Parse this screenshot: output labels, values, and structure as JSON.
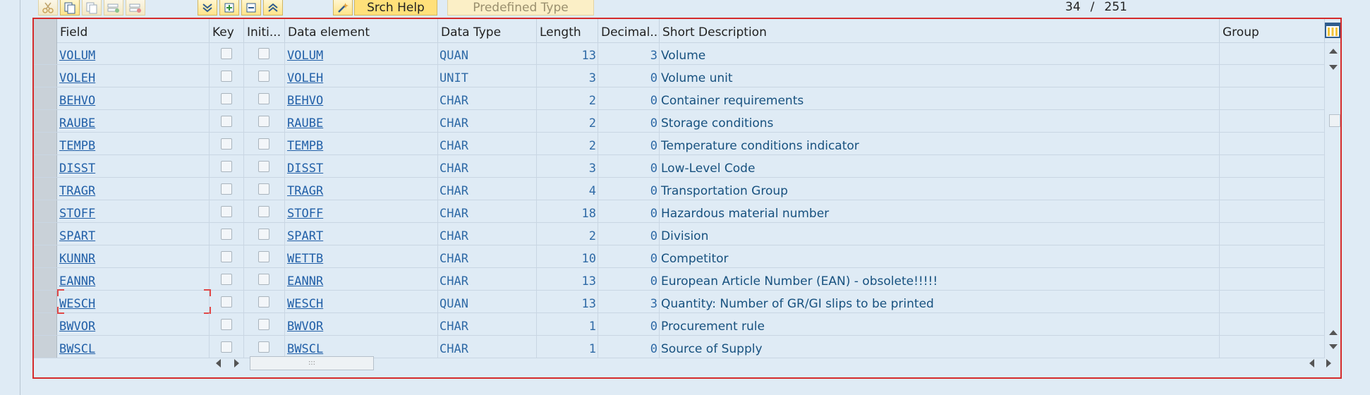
{
  "toolbar": {
    "srch_help_label": "Srch Help",
    "predefined_type_label": "Predefined Type",
    "counter_current": "34",
    "counter_sep": "/",
    "counter_total": "251"
  },
  "columns": [
    "Field",
    "Key",
    "Initi...",
    "Data element",
    "Data Type",
    "Length",
    "Decimal...",
    "Short Description",
    "Group"
  ],
  "rows": [
    {
      "field": "VOLUM",
      "element": "VOLUM",
      "type": "QUAN",
      "length": "13",
      "decimals": "3",
      "desc": "Volume"
    },
    {
      "field": "VOLEH",
      "element": "VOLEH",
      "type": "UNIT",
      "length": "3",
      "decimals": "0",
      "desc": "Volume unit"
    },
    {
      "field": "BEHVO",
      "element": "BEHVO",
      "type": "CHAR",
      "length": "2",
      "decimals": "0",
      "desc": "Container requirements"
    },
    {
      "field": "RAUBE",
      "element": "RAUBE",
      "type": "CHAR",
      "length": "2",
      "decimals": "0",
      "desc": "Storage conditions"
    },
    {
      "field": "TEMPB",
      "element": "TEMPB",
      "type": "CHAR",
      "length": "2",
      "decimals": "0",
      "desc": "Temperature conditions indicator"
    },
    {
      "field": "DISST",
      "element": "DISST",
      "type": "CHAR",
      "length": "3",
      "decimals": "0",
      "desc": "Low-Level Code"
    },
    {
      "field": "TRAGR",
      "element": "TRAGR",
      "type": "CHAR",
      "length": "4",
      "decimals": "0",
      "desc": "Transportation Group"
    },
    {
      "field": "STOFF",
      "element": "STOFF",
      "type": "CHAR",
      "length": "18",
      "decimals": "0",
      "desc": "Hazardous material number"
    },
    {
      "field": "SPART",
      "element": "SPART",
      "type": "CHAR",
      "length": "2",
      "decimals": "0",
      "desc": "Division"
    },
    {
      "field": "KUNNR",
      "element": "WETTB",
      "type": "CHAR",
      "length": "10",
      "decimals": "0",
      "desc": "Competitor"
    },
    {
      "field": "EANNR",
      "element": "EANNR",
      "type": "CHAR",
      "length": "13",
      "decimals": "0",
      "desc": "European Article Number (EAN) - obsolete!!!!!"
    },
    {
      "field": "WESCH",
      "element": "WESCH",
      "type": "QUAN",
      "length": "13",
      "decimals": "3",
      "desc": "Quantity: Number of GR/GI slips to be printed"
    },
    {
      "field": "BWVOR",
      "element": "BWVOR",
      "type": "CHAR",
      "length": "1",
      "decimals": "0",
      "desc": "Procurement rule"
    },
    {
      "field": "BWSCL",
      "element": "BWSCL",
      "type": "CHAR",
      "length": "1",
      "decimals": "0",
      "desc": "Source of Supply"
    }
  ],
  "colors": {
    "accent_border": "#d52b2b",
    "link": "#2260a8",
    "toolbar_button": "#ffe07a"
  },
  "icons": [
    "cut-icon",
    "copy-icon",
    "paste-icon",
    "insert-row-icon",
    "delete-row-icon",
    "expand-icon",
    "add-field-icon",
    "check-icon",
    "collapse-icon",
    "wizard-icon",
    "layout-icon"
  ]
}
